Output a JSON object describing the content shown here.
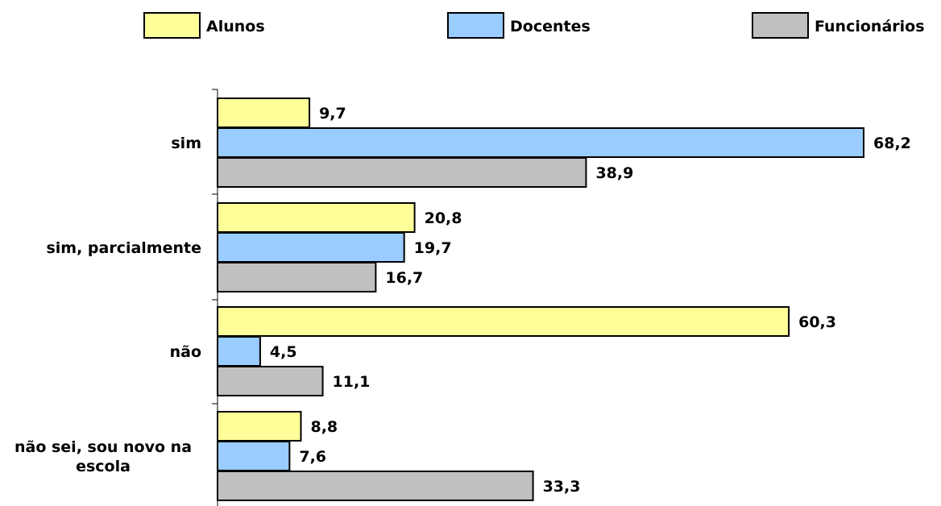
{
  "chart_data": {
    "type": "bar",
    "orientation": "horizontal",
    "categories": [
      [
        "sim"
      ],
      [
        "sim, parcialmente"
      ],
      [
        "não"
      ],
      [
        "não sei, sou novo na",
        "escola"
      ]
    ],
    "series": [
      {
        "name": "Alunos",
        "color": "#ffff99",
        "values": [
          9.7,
          20.8,
          60.3,
          8.8
        ],
        "labels": [
          "9,7",
          "20,8",
          "60,3",
          "8,8"
        ]
      },
      {
        "name": "Docentes",
        "color": "#99ccff",
        "values": [
          68.2,
          19.7,
          4.5,
          7.6
        ],
        "labels": [
          "68,2",
          "19,7",
          "4,5",
          "7,6"
        ]
      },
      {
        "name": "Funcionários",
        "color": "#c0c0c0",
        "values": [
          38.9,
          16.7,
          11.1,
          33.3
        ],
        "labels": [
          "38,9",
          "16,7",
          "11,1",
          "33,3"
        ]
      }
    ],
    "title": "",
    "xlabel": "",
    "ylabel": "",
    "xlim": [
      0,
      68.2
    ],
    "grid": false,
    "legend_position": "top"
  }
}
